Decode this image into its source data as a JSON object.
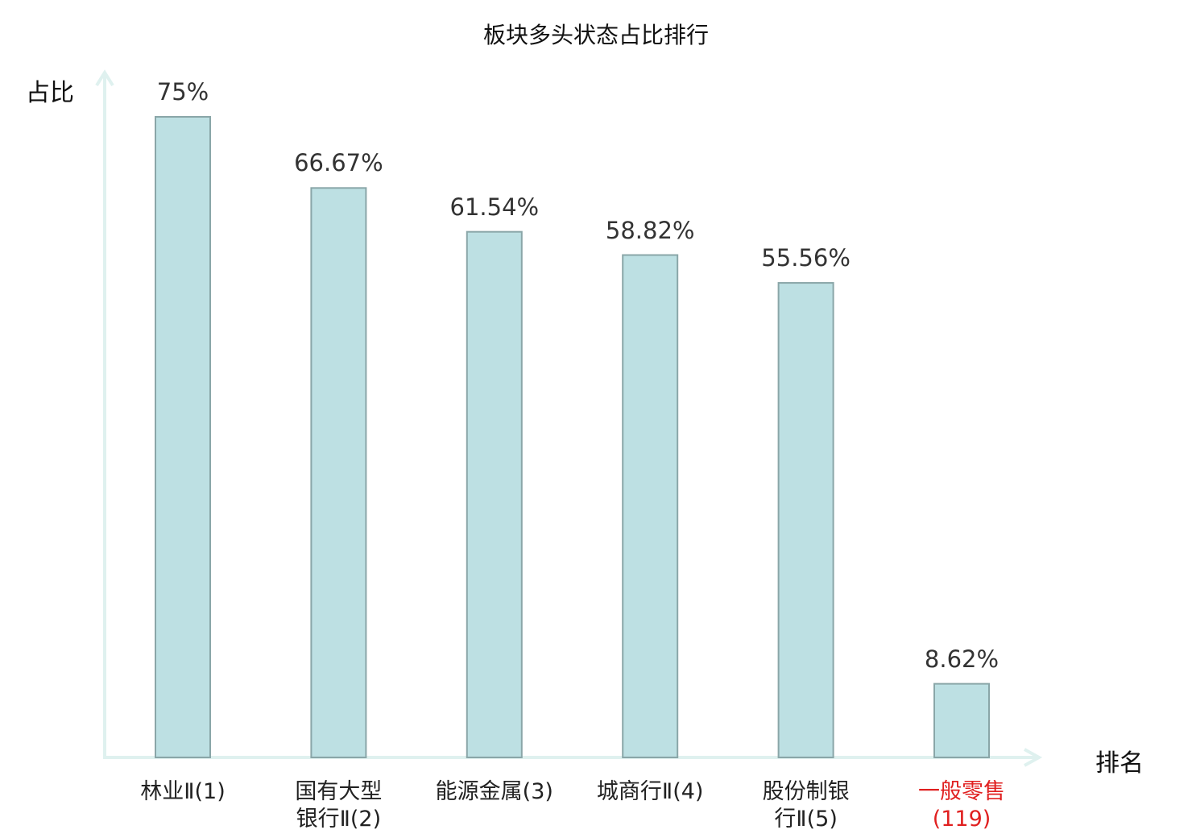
{
  "chart_data": {
    "type": "bar",
    "title": "板块多头状态占比排行",
    "ylabel": "占比",
    "xlabel": "排名",
    "categories": [
      [
        "林业Ⅱ(1)"
      ],
      [
        "国有大型",
        "银行Ⅱ(2)"
      ],
      [
        "能源金属(3)"
      ],
      [
        "城商行Ⅱ(4)"
      ],
      [
        "股份制银",
        "行Ⅱ(5)"
      ],
      [
        "一般零售(119)"
      ]
    ],
    "values": [
      75,
      66.67,
      61.54,
      58.82,
      55.56,
      8.62
    ],
    "value_labels": [
      "75%",
      "66.67%",
      "61.54%",
      "58.82%",
      "55.56%",
      "8.62%"
    ],
    "highlight_index": 5,
    "ylim": [
      0,
      75
    ],
    "colors": {
      "bar_fill": "#bde0e3",
      "bar_stroke": "#8aa6a8",
      "axis": "#dff1ef",
      "highlight_text": "#e02020"
    },
    "grid": false
  }
}
